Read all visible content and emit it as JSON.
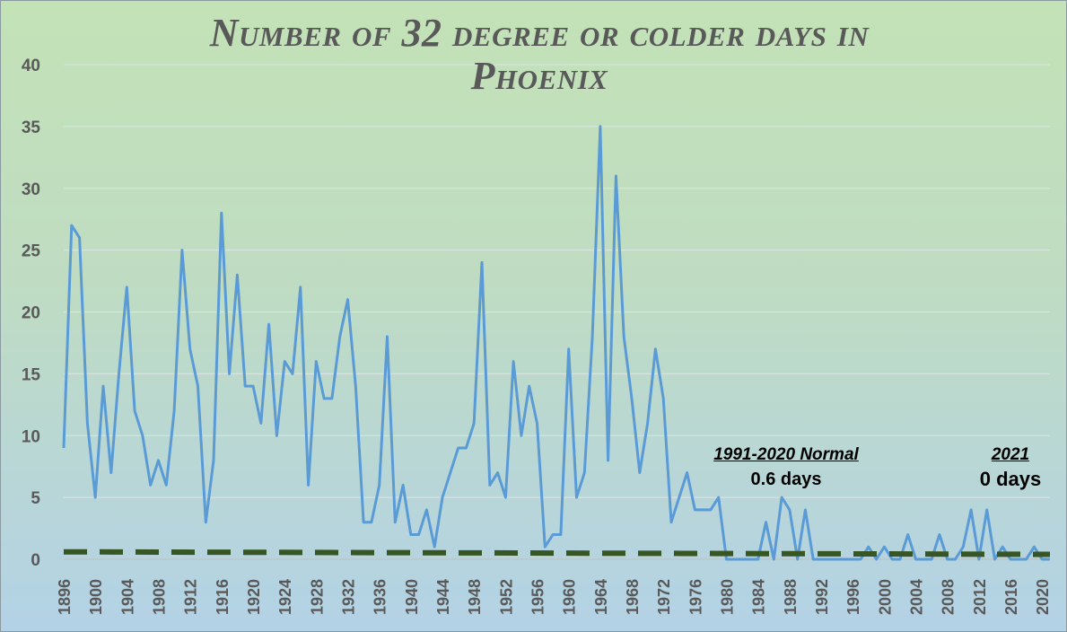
{
  "chart_data": {
    "type": "line",
    "title": "Number of 32 degree or colder days in Phoenix",
    "xlabel": "",
    "ylabel": "",
    "ylim": [
      0,
      40
    ],
    "yticks": [
      0,
      5,
      10,
      15,
      20,
      25,
      30,
      35,
      40
    ],
    "xlim": [
      1896,
      2021
    ],
    "xticks": [
      1896,
      1900,
      1904,
      1908,
      1912,
      1916,
      1920,
      1924,
      1928,
      1932,
      1936,
      1940,
      1944,
      1948,
      1952,
      1956,
      1960,
      1964,
      1968,
      1972,
      1976,
      1980,
      1984,
      1988,
      1992,
      1996,
      2000,
      2004,
      2008,
      2012,
      2016,
      2020
    ],
    "grid": true,
    "legend": "none",
    "series": [
      {
        "color": "#5b9bd5",
        "x": [
          1896,
          1897,
          1898,
          1899,
          1900,
          1901,
          1902,
          1903,
          1904,
          1905,
          1906,
          1907,
          1908,
          1909,
          1910,
          1911,
          1912,
          1913,
          1914,
          1915,
          1916,
          1917,
          1918,
          1919,
          1920,
          1921,
          1922,
          1923,
          1924,
          1925,
          1926,
          1927,
          1928,
          1929,
          1930,
          1931,
          1932,
          1933,
          1934,
          1935,
          1936,
          1937,
          1938,
          1939,
          1940,
          1941,
          1942,
          1943,
          1944,
          1945,
          1946,
          1947,
          1948,
          1949,
          1950,
          1951,
          1952,
          1953,
          1954,
          1955,
          1956,
          1957,
          1958,
          1959,
          1960,
          1961,
          1962,
          1963,
          1964,
          1965,
          1966,
          1967,
          1968,
          1969,
          1970,
          1971,
          1972,
          1973,
          1974,
          1975,
          1976,
          1977,
          1978,
          1979,
          1980,
          1981,
          1982,
          1983,
          1984,
          1985,
          1986,
          1987,
          1988,
          1989,
          1990,
          1991,
          1992,
          1993,
          1994,
          1995,
          1996,
          1997,
          1998,
          1999,
          2000,
          2001,
          2002,
          2003,
          2004,
          2005,
          2006,
          2007,
          2008,
          2009,
          2010,
          2011,
          2012,
          2013,
          2014,
          2015,
          2016,
          2017,
          2018,
          2019,
          2020,
          2021
        ],
        "values": [
          9,
          27,
          26,
          11,
          5,
          14,
          7,
          15,
          22,
          12,
          10,
          6,
          8,
          6,
          12,
          25,
          17,
          14,
          3,
          8,
          28,
          15,
          23,
          14,
          14,
          11,
          19,
          10,
          16,
          15,
          22,
          6,
          16,
          13,
          13,
          18,
          21,
          14,
          3,
          3,
          6,
          18,
          3,
          6,
          2,
          2,
          4,
          1,
          5,
          7,
          9,
          9,
          11,
          24,
          6,
          7,
          5,
          16,
          10,
          14,
          11,
          1,
          2,
          2,
          17,
          5,
          7,
          18,
          35,
          8,
          31,
          18,
          13,
          7,
          11,
          17,
          13,
          3,
          5,
          7,
          4,
          4,
          4,
          5,
          0,
          0,
          0,
          0,
          0,
          3,
          0,
          5,
          4,
          0,
          4,
          0,
          0,
          0,
          0,
          0,
          0,
          0,
          1,
          0,
          1,
          0,
          0,
          2,
          0,
          0,
          0,
          2,
          0,
          0,
          1,
          4,
          0,
          4,
          0,
          1,
          0,
          0,
          0,
          1,
          0,
          0
        ]
      },
      {
        "color": "#375623",
        "dashed": true,
        "x": [
          1896,
          2021
        ],
        "values": [
          0.6,
          0.4
        ]
      }
    ],
    "annotations": {
      "normal_label": "1991-2020 Normal",
      "normal_value": "0.6 days",
      "year_label": "2021",
      "year_value": "0 days"
    }
  }
}
